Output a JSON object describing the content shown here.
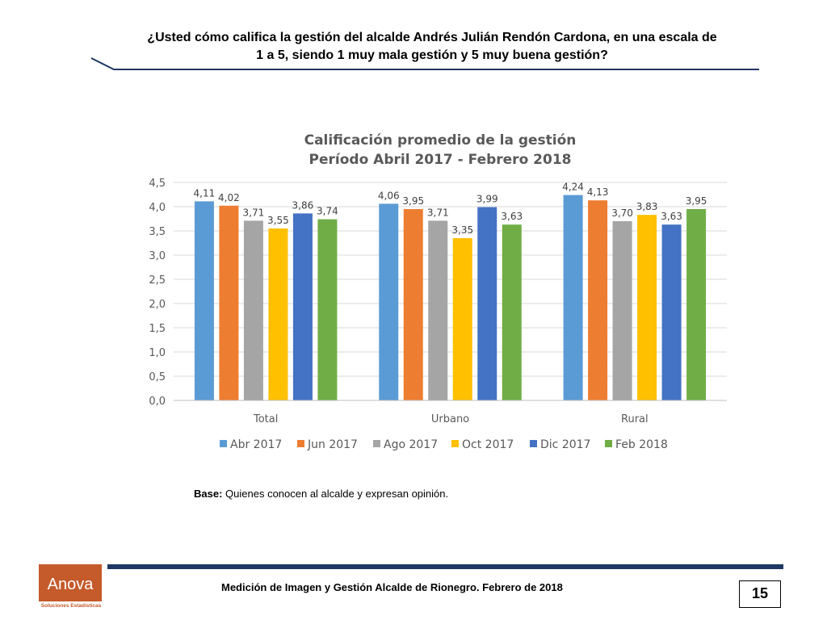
{
  "header": {
    "question_line1": "¿Usted cómo califica la gestión del alcalde Andrés Julián Rendón Cardona, en una escala de",
    "question_line2": "1 a 5, siendo 1 muy mala gestión y 5 muy buena gestión?"
  },
  "chart_data": {
    "type": "bar",
    "title_line1": "Calificación promedio de la gestión",
    "title_line2": "Período Abril 2017 - Febrero 2018",
    "categories": [
      "Total",
      "Urbano",
      "Rural"
    ],
    "series": [
      {
        "name": "Abr 2017",
        "color": "#5b9bd5",
        "values": [
          4.11,
          4.06,
          4.24
        ],
        "labels": [
          "4,11",
          "4,06",
          "4,24"
        ]
      },
      {
        "name": "Jun 2017",
        "color": "#ed7d31",
        "values": [
          4.02,
          3.95,
          4.13
        ],
        "labels": [
          "4,02",
          "3,95",
          "4,13"
        ]
      },
      {
        "name": "Ago 2017",
        "color": "#a5a5a5",
        "values": [
          3.71,
          3.71,
          3.7
        ],
        "labels": [
          "3,71",
          "3,71",
          "3,70"
        ]
      },
      {
        "name": "Oct 2017",
        "color": "#ffc000",
        "values": [
          3.55,
          3.35,
          3.83
        ],
        "labels": [
          "3,55",
          "3,35",
          "3,83"
        ]
      },
      {
        "name": "Dic 2017",
        "color": "#4472c4",
        "values": [
          3.86,
          3.99,
          3.63
        ],
        "labels": [
          "3,86",
          "3,99",
          "3,63"
        ]
      },
      {
        "name": "Feb 2018",
        "color": "#70ad47",
        "values": [
          3.74,
          3.63,
          3.95
        ],
        "labels": [
          "3,74",
          "3,63",
          "3,95"
        ]
      }
    ],
    "ylim": [
      0,
      4.5
    ],
    "yticks": [
      0,
      0.5,
      1.0,
      1.5,
      2.0,
      2.5,
      3.0,
      3.5,
      4.0,
      4.5
    ],
    "ytick_labels": [
      "0,0",
      "0,5",
      "1,0",
      "1,5",
      "2,0",
      "2,5",
      "3,0",
      "3,5",
      "4,0",
      "4,5"
    ],
    "grid": true,
    "legend": "bottom"
  },
  "note": {
    "base_label": "Base:",
    "base_text": " Quienes conocen al alcalde y expresan opinión."
  },
  "footer": {
    "text": "Medición de Imagen y Gestión Alcalde de Rionegro. Febrero de 2018",
    "page_number": "15"
  },
  "logo": {
    "name": "Anova",
    "subtitle": "Soluciones Estadísticas"
  }
}
